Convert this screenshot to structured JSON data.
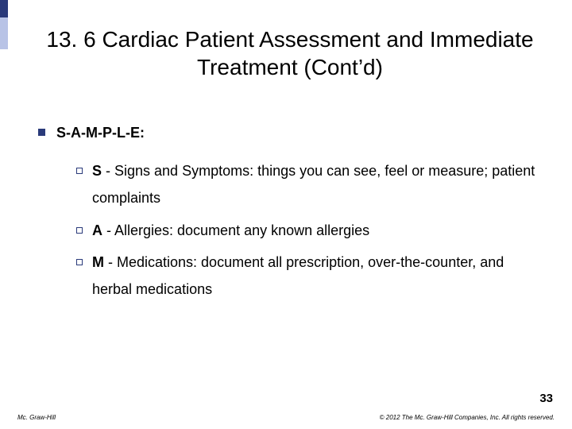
{
  "accent": {
    "dark": "#2a3a7a",
    "light": "#b8c3e6"
  },
  "title": "13. 6  Cardiac Patient Assessment and Immediate Treatment (Cont’d)",
  "heading": "S-A-M-P-L-E:",
  "items": [
    {
      "lead": "S",
      "rest": " - Signs and Symptoms:  things you can see, feel or measure; patient complaints"
    },
    {
      "lead": "A",
      "rest": " - Allergies:  document any known allergies"
    },
    {
      "lead": "M",
      "rest": " - Medications:  document all prescription, over-the-counter, and herbal medications"
    }
  ],
  "page_number": "33",
  "footer_left": "Mc. Graw-Hill",
  "footer_right": "© 2012 The Mc. Graw-Hill Companies, Inc. All rights reserved."
}
